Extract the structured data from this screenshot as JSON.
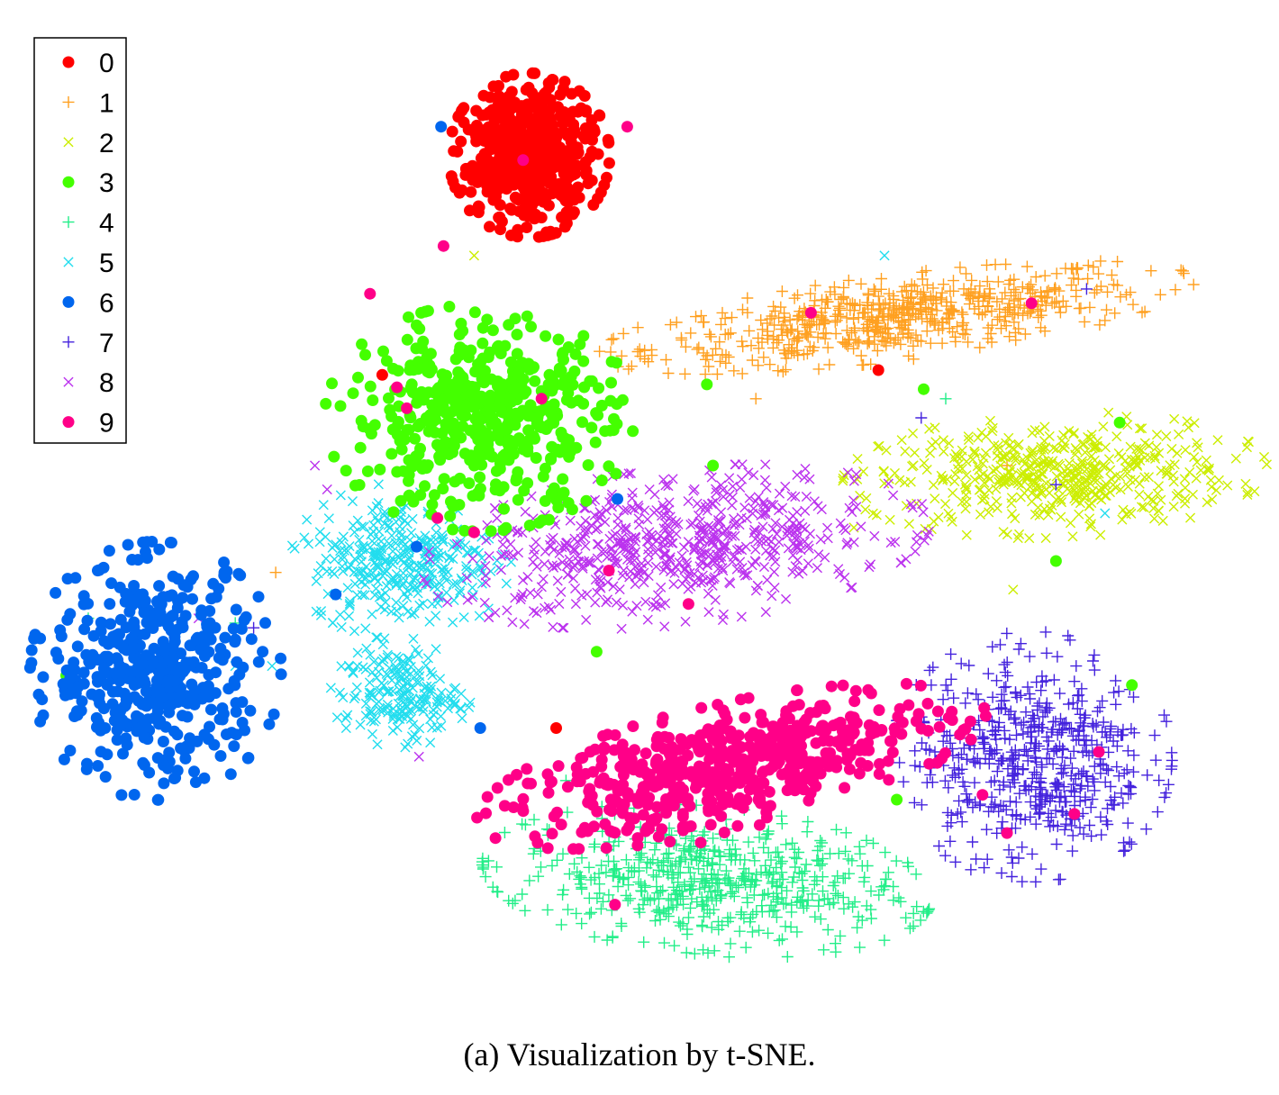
{
  "caption": "(a)  Visualization by t-SNE.",
  "chart_data": {
    "type": "scatter",
    "title": "",
    "xlabel": "",
    "ylabel": "",
    "xlim": [
      0,
      100
    ],
    "ylim": [
      0,
      100
    ],
    "axes_visible": false,
    "grid": false,
    "legend_placement": "top-left",
    "series": [
      {
        "name": "0",
        "marker": "dot",
        "color": "#ff0000",
        "approx_points": 520,
        "clusters": [
          {
            "cx": 41.0,
            "cy": 87.5,
            "sx": 3.2,
            "sy": 4.2,
            "n": 520,
            "rx": 0.7
          }
        ],
        "outliers": [
          [
            29.0,
            64.5
          ],
          [
            69.5,
            65.0
          ],
          [
            43.2,
            27.5
          ]
        ]
      },
      {
        "name": "1",
        "marker": "plus",
        "color": "#ffa020",
        "approx_points": 600,
        "clusters": [
          {
            "cx": 71.0,
            "cy": 70.5,
            "sx": 12.0,
            "sy": 2.2,
            "n": 600,
            "rot": 0.16
          }
        ],
        "outliers": [
          [
            20.3,
            43.8
          ],
          [
            59.5,
            62.0
          ],
          [
            80.0,
            55.0
          ]
        ]
      },
      {
        "name": "2",
        "marker": "x",
        "color": "#ccee00",
        "approx_points": 480,
        "clusters": [
          {
            "cx": 84.0,
            "cy": 54.0,
            "sx": 8.5,
            "sy": 3.2,
            "n": 480,
            "rot": 0.05
          }
        ],
        "outliers": [
          [
            67.5,
            48.5
          ],
          [
            80.5,
            42.0
          ],
          [
            36.5,
            77.0
          ]
        ]
      },
      {
        "name": "3",
        "marker": "dot",
        "color": "#44ff00",
        "approx_points": 500,
        "clusters": [
          {
            "cx": 37.0,
            "cy": 60.0,
            "sx": 6.2,
            "sy": 5.8,
            "n": 500,
            "rx": 0.6
          }
        ],
        "outliers": [
          [
            55.5,
            63.5
          ],
          [
            56.0,
            55.0
          ],
          [
            46.5,
            35.5
          ],
          [
            84.0,
            45.0
          ],
          [
            89.2,
            59.5
          ],
          [
            73.2,
            63.0
          ],
          [
            71.0,
            20.0
          ],
          [
            90.2,
            32.0
          ],
          [
            3.2,
            33.0
          ]
        ]
      },
      {
        "name": "4",
        "marker": "plus",
        "color": "#22ee88",
        "approx_points": 560,
        "clusters": [
          {
            "cx": 55.5,
            "cy": 11.5,
            "sx": 9.0,
            "sy": 3.8,
            "n": 560,
            "rot": -0.12
          }
        ],
        "outliers": [
          [
            5.0,
            39.0
          ],
          [
            17.0,
            38.5
          ],
          [
            75.0,
            62.0
          ],
          [
            44.0,
            22.0
          ]
        ]
      },
      {
        "name": "5",
        "marker": "x",
        "color": "#22ddee",
        "approx_points": 520,
        "clusters": [
          {
            "cx": 30.5,
            "cy": 45.0,
            "sx": 4.4,
            "sy": 4.0,
            "n": 330
          },
          {
            "cx": 30.5,
            "cy": 31.0,
            "sx": 2.8,
            "sy": 2.7,
            "n": 190
          }
        ],
        "outliers": [
          [
            17.0,
            34.0
          ],
          [
            20.0,
            34.0
          ],
          [
            70.0,
            77.0
          ],
          [
            88.0,
            50.0
          ]
        ]
      },
      {
        "name": "6",
        "marker": "dot",
        "color": "#0066ee",
        "approx_points": 470,
        "clusters": [
          {
            "cx": 10.5,
            "cy": 33.5,
            "sx": 5.0,
            "sy": 6.6,
            "n": 470,
            "rx": 0.4
          }
        ],
        "outliers": [
          [
            33.8,
            90.5
          ],
          [
            31.8,
            46.5
          ],
          [
            25.2,
            41.5
          ],
          [
            37.0,
            27.5
          ],
          [
            48.2,
            51.5
          ]
        ]
      },
      {
        "name": "7",
        "marker": "plus",
        "color": "#4422dd",
        "approx_points": 540,
        "clusters": [
          {
            "cx": 82.0,
            "cy": 24.5,
            "sx": 5.6,
            "sy": 6.4,
            "n": 540
          }
        ],
        "outliers": [
          [
            73.0,
            60.0
          ],
          [
            84.0,
            53.0
          ],
          [
            18.5,
            38.0
          ],
          [
            86.5,
            73.5
          ]
        ]
      },
      {
        "name": "8",
        "marker": "x",
        "color": "#bb33ee",
        "approx_points": 620,
        "clusters": [
          {
            "cx": 53.0,
            "cy": 46.5,
            "sx": 10.2,
            "sy": 4.0,
            "n": 620,
            "rot": 0.14
          }
        ],
        "outliers": [
          [
            23.5,
            55.0
          ],
          [
            24.5,
            52.5
          ],
          [
            32.0,
            24.5
          ],
          [
            14.0,
            39.0
          ]
        ]
      },
      {
        "name": "9",
        "marker": "dot",
        "color": "#ff0088",
        "approx_points": 560,
        "clusters": [
          {
            "cx": 57.5,
            "cy": 23.5,
            "sx": 10.5,
            "sy": 3.2,
            "n": 560,
            "rot": 0.28,
            "rx": 0.5
          }
        ],
        "outliers": [
          [
            31.0,
            61.0
          ],
          [
            30.2,
            63.2
          ],
          [
            42.0,
            62.0
          ],
          [
            33.5,
            49.5
          ],
          [
            36.5,
            48.0
          ],
          [
            47.5,
            44.0
          ],
          [
            54.0,
            40.5
          ],
          [
            64.0,
            71.0
          ],
          [
            82.0,
            72.0
          ],
          [
            48.0,
            9.0
          ],
          [
            55.0,
            15.5
          ],
          [
            80.0,
            16.5
          ],
          [
            85.5,
            18.5
          ],
          [
            87.5,
            25.0
          ],
          [
            78.0,
            20.5
          ],
          [
            49.0,
            90.5
          ],
          [
            40.5,
            87.0
          ],
          [
            34.0,
            78.0
          ],
          [
            28.0,
            73.0
          ]
        ]
      }
    ]
  }
}
